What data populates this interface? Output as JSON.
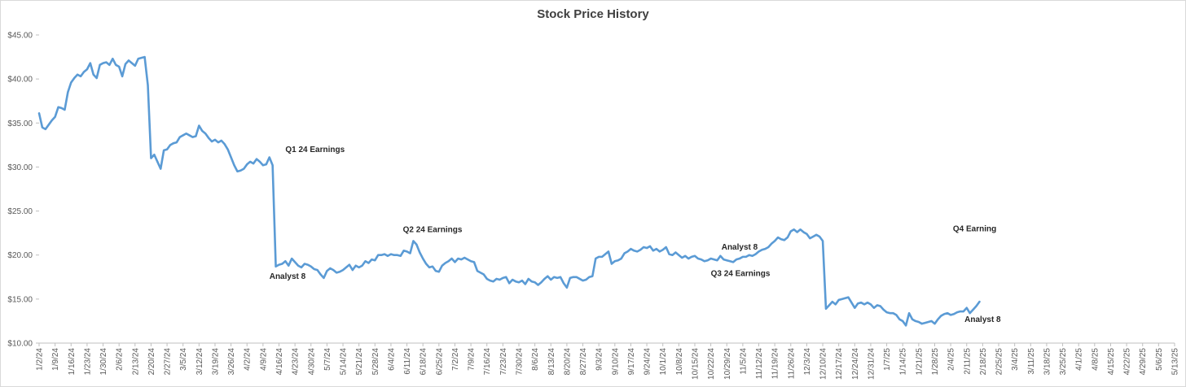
{
  "chart_data": {
    "type": "line",
    "title": "Stock Price History",
    "xlabel": "",
    "ylabel": "",
    "ylim": [
      10,
      45
    ],
    "y_ticks": [
      10,
      15,
      20,
      25,
      30,
      35,
      40,
      45
    ],
    "y_tick_labels": [
      "$10.00",
      "$15.00",
      "$20.00",
      "$25.00",
      "$30.00",
      "$35.00",
      "$40.00",
      "$45.00"
    ],
    "x_tick_labels": [
      "1/2/24",
      "1/9/24",
      "1/16/24",
      "1/23/24",
      "1/30/24",
      "2/6/24",
      "2/13/24",
      "2/20/24",
      "2/27/24",
      "3/5/24",
      "3/12/24",
      "3/19/24",
      "3/26/24",
      "4/2/24",
      "4/9/24",
      "4/16/24",
      "4/23/24",
      "4/30/24",
      "5/7/24",
      "5/14/24",
      "5/21/24",
      "5/28/24",
      "6/4/24",
      "6/11/24",
      "6/18/24",
      "6/25/24",
      "7/2/24",
      "7/9/24",
      "7/16/24",
      "7/23/24",
      "7/30/24",
      "8/6/24",
      "8/13/24",
      "8/20/24",
      "8/27/24",
      "9/3/24",
      "9/10/24",
      "9/17/24",
      "9/24/24",
      "10/1/24",
      "10/8/24",
      "10/15/24",
      "10/22/24",
      "10/29/24",
      "11/5/24",
      "11/12/24",
      "11/19/24",
      "11/26/24",
      "12/3/24",
      "12/10/24",
      "12/17/24",
      "12/24/24",
      "12/31/24",
      "1/7/25",
      "1/14/25",
      "1/21/25",
      "1/28/25",
      "2/4/25",
      "2/11/25",
      "2/18/25",
      "2/25/25",
      "3/4/25",
      "3/11/25",
      "3/18/25",
      "3/25/25",
      "4/1/25",
      "4/8/25",
      "4/15/25",
      "4/22/25",
      "4/29/25",
      "5/6/25",
      "5/13/25"
    ],
    "series": [
      {
        "name": "Stock Price",
        "color": "#5b9bd5",
        "x_start": 0,
        "x_step": 0.2,
        "values": [
          36.1,
          34.5,
          34.3,
          34.8,
          35.3,
          35.7,
          36.8,
          36.7,
          36.5,
          38.5,
          39.6,
          40.1,
          40.5,
          40.3,
          40.8,
          41.1,
          41.8,
          40.5,
          40.1,
          41.6,
          41.8,
          41.9,
          41.6,
          42.3,
          41.6,
          41.4,
          40.3,
          41.7,
          42.1,
          41.8,
          41.5,
          42.3,
          42.4,
          42.5,
          39.3,
          31.0,
          31.4,
          30.6,
          29.8,
          31.9,
          32.0,
          32.5,
          32.7,
          32.8,
          33.4,
          33.6,
          33.8,
          33.6,
          33.4,
          33.5,
          34.7,
          34.1,
          33.8,
          33.3,
          32.9,
          33.1,
          32.8,
          33.0,
          32.6,
          32.0,
          31.1,
          30.2,
          29.5,
          29.6,
          29.8,
          30.3,
          30.6,
          30.4,
          30.9,
          30.6,
          30.2,
          30.3,
          31.1,
          30.2,
          18.7,
          18.9,
          19.0,
          19.3,
          18.8,
          19.6,
          19.2,
          18.8,
          18.6,
          19.0,
          18.9,
          18.7,
          18.4,
          18.3,
          17.8,
          17.4,
          18.2,
          18.5,
          18.3,
          18.0,
          18.1,
          18.3,
          18.6,
          18.9,
          18.3,
          18.8,
          18.6,
          18.8,
          19.3,
          19.1,
          19.5,
          19.4,
          20.0,
          20.0,
          20.1,
          19.9,
          20.1,
          20.0,
          20.0,
          19.9,
          20.5,
          20.4,
          20.2,
          21.6,
          21.2,
          20.3,
          19.6,
          19.0,
          18.6,
          18.7,
          18.2,
          18.1,
          18.8,
          19.1,
          19.3,
          19.6,
          19.2,
          19.6,
          19.5,
          19.7,
          19.5,
          19.3,
          19.2,
          18.2,
          18.0,
          17.8,
          17.3,
          17.1,
          17.0,
          17.3,
          17.2,
          17.4,
          17.5,
          16.8,
          17.2,
          17.0,
          16.9,
          17.1,
          16.7,
          17.3,
          17.0,
          16.9,
          16.6,
          16.9,
          17.3,
          17.6,
          17.2,
          17.5,
          17.4,
          17.5,
          16.8,
          16.3,
          17.4,
          17.5,
          17.5,
          17.3,
          17.1,
          17.2,
          17.5,
          17.6,
          19.6,
          19.8,
          19.8,
          20.1,
          20.4,
          19.0,
          19.3,
          19.4,
          19.6,
          20.2,
          20.4,
          20.7,
          20.5,
          20.4,
          20.6,
          20.9,
          20.8,
          21.0,
          20.5,
          20.7,
          20.4,
          20.6,
          20.9,
          20.1,
          20.0,
          20.3,
          20.0,
          19.7,
          19.9,
          19.6,
          19.8,
          19.9,
          19.6,
          19.5,
          19.3,
          19.4,
          19.6,
          19.5,
          19.4,
          19.9,
          19.5,
          19.4,
          19.3,
          19.2,
          19.5,
          19.6,
          19.8,
          19.8,
          20.0,
          19.9,
          20.1,
          20.4,
          20.6,
          20.7,
          20.9,
          21.3,
          21.6,
          22.0,
          21.8,
          21.7,
          22.0,
          22.7,
          22.9,
          22.6,
          22.9,
          22.6,
          22.4,
          21.9,
          22.1,
          22.3,
          22.1,
          21.6,
          13.9,
          14.3,
          14.7,
          14.4,
          14.9,
          15.0,
          15.1,
          15.2,
          14.6,
          14.0,
          14.5,
          14.6,
          14.4,
          14.6,
          14.4,
          14.0,
          14.3,
          14.2,
          13.8,
          13.5,
          13.4,
          13.4,
          13.2,
          12.7,
          12.5,
          12.0,
          13.4,
          12.7,
          12.5,
          12.4,
          12.2,
          12.3,
          12.4,
          12.5,
          12.2,
          12.7,
          13.1,
          13.3,
          13.4,
          13.2,
          13.3,
          13.5,
          13.6,
          13.6,
          14.0,
          13.4,
          13.8,
          14.2,
          14.7
        ]
      }
    ],
    "annotations": [
      {
        "label": "Q1 24 Earnings",
        "x": 15.4,
        "y": 31.7,
        "anchor": "start"
      },
      {
        "label": "Analyst 8",
        "x": 14.4,
        "y": 17.3,
        "anchor": "start"
      },
      {
        "label": "Q2 24 Earnings",
        "x": 24.6,
        "y": 22.6,
        "anchor": "middle"
      },
      {
        "label": "Analyst 8",
        "x": 43.8,
        "y": 20.6,
        "anchor": "middle"
      },
      {
        "label": "Q3 24 Earnings",
        "x": 42.0,
        "y": 17.6,
        "anchor": "start"
      },
      {
        "label": "Q4 Earning",
        "x": 58.5,
        "y": 22.7,
        "anchor": "middle"
      },
      {
        "label": "Analyst  8",
        "x": 59.0,
        "y": 12.4,
        "anchor": "middle"
      }
    ]
  }
}
